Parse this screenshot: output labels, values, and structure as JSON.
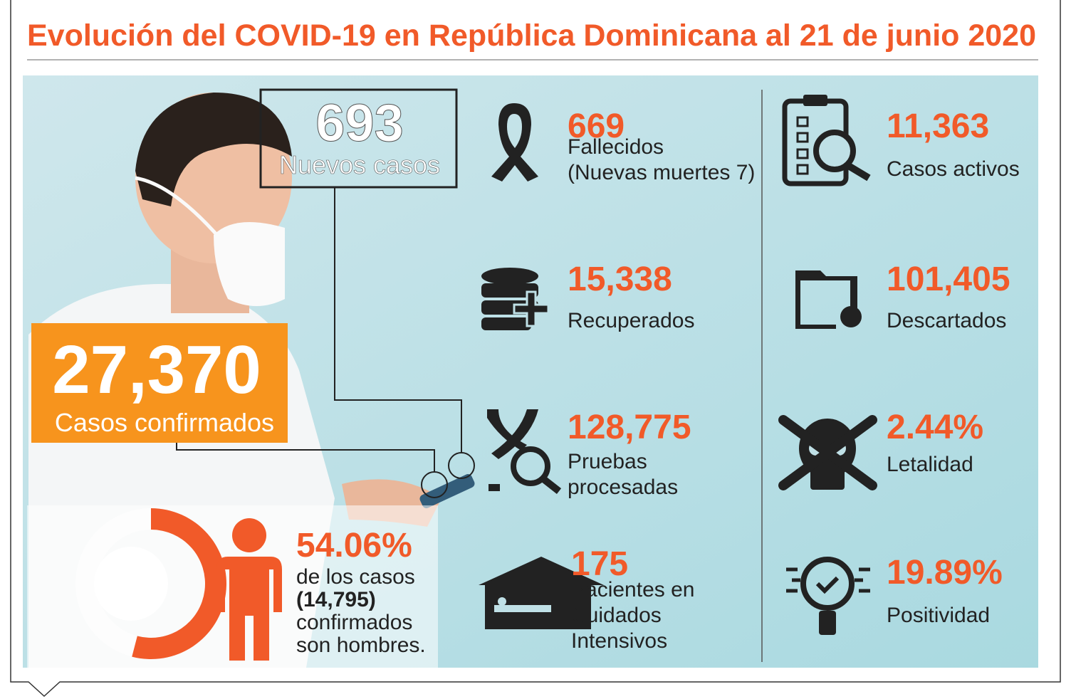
{
  "title": "Evolución del COVID-19 en República Dominicana al 21 de junio 2020",
  "new_cases": {
    "value": "693",
    "label": "Nuevos casos"
  },
  "confirmed": {
    "value": "27,370",
    "label": "Casos confirmados"
  },
  "men": {
    "percent": {
      "value": 54.06,
      "label": "54.06%"
    },
    "lines": [
      "de los casos",
      "(14,795)",
      "confirmados",
      "son hombres."
    ]
  },
  "stats": [
    {
      "value": "669",
      "label": [
        "Fallecidos",
        "(Nuevas muertes 7)"
      ]
    },
    {
      "value": "15,338",
      "label": [
        "Recuperados"
      ]
    },
    {
      "value": "128,775",
      "label": [
        "Pruebas",
        "procesadas"
      ]
    },
    {
      "value": "175",
      "label": [
        "Pacientes en",
        "Cuidados",
        "Intensivos"
      ]
    },
    {
      "value": "11,363",
      "label": [
        "Casos activos"
      ]
    },
    {
      "value": "101,405",
      "label": [
        "Descartados"
      ]
    },
    {
      "value": "2.44%",
      "label": [
        "Letalidad"
      ]
    },
    {
      "value": "19.89%",
      "label": [
        "Positividad"
      ]
    }
  ]
}
